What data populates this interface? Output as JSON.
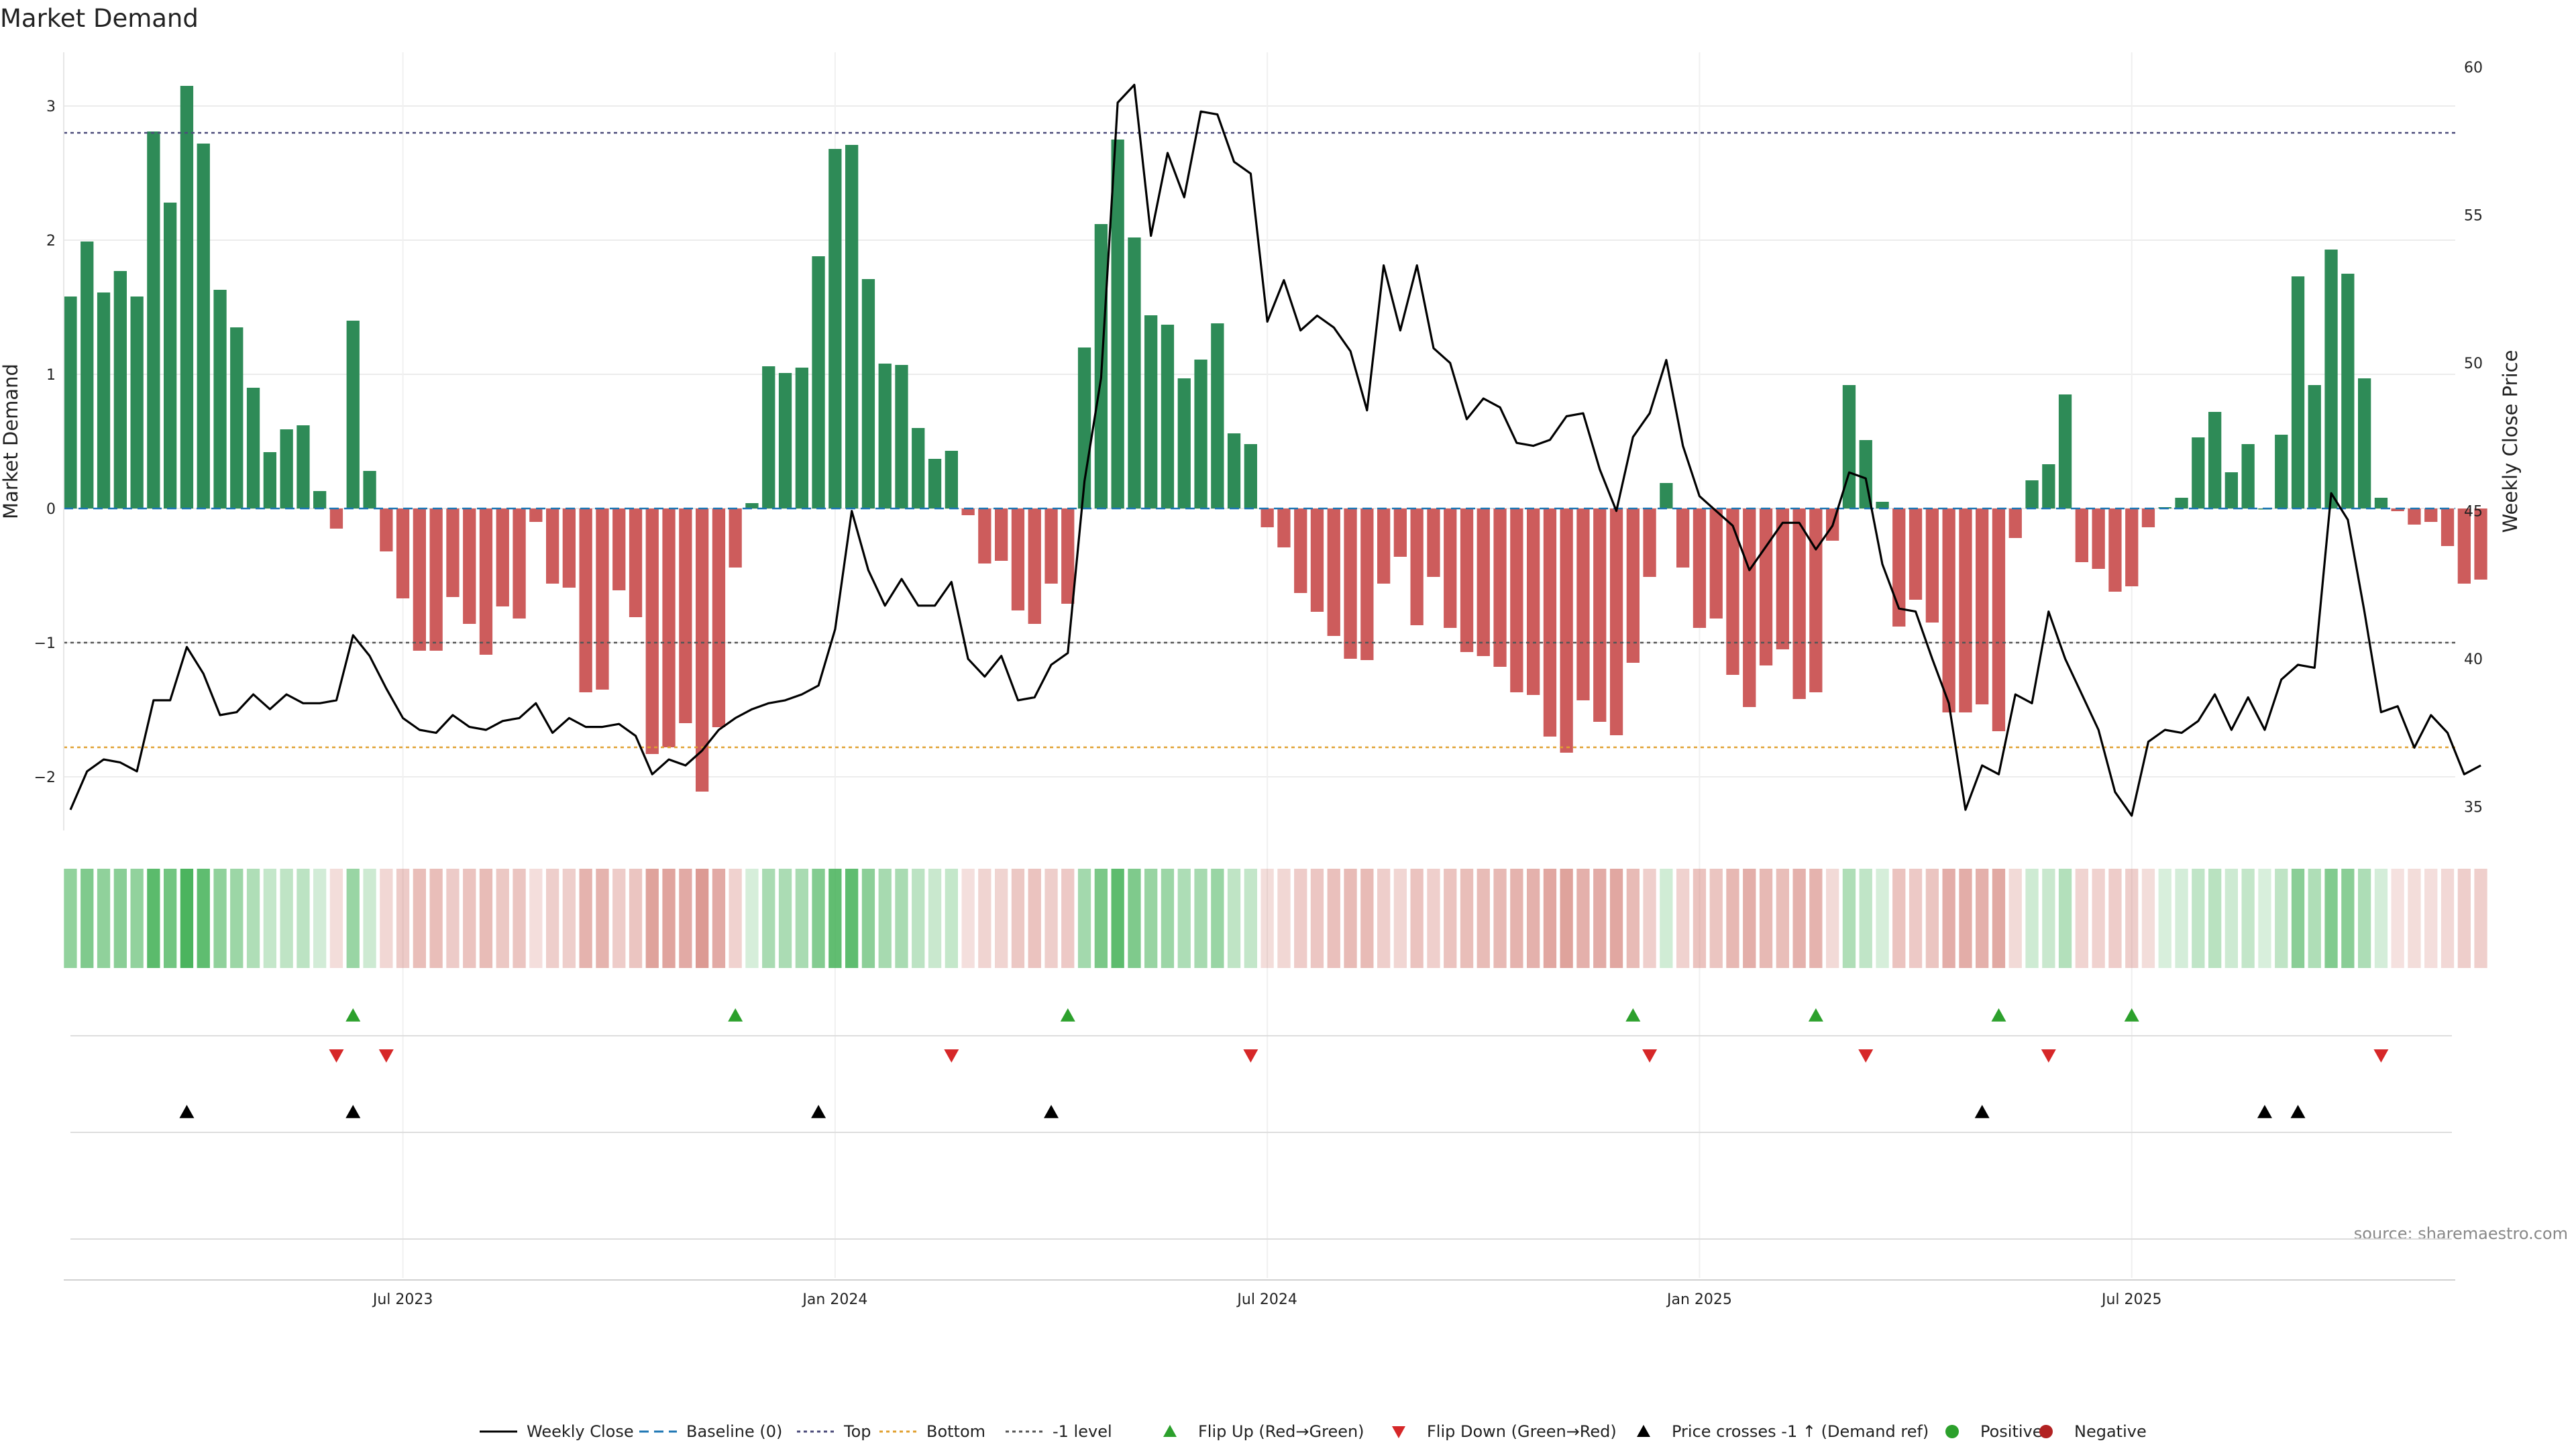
{
  "chart_data": {
    "type": "bar",
    "title": "Market Demand",
    "ylabel_left": "Market Demand",
    "ylabel_right": "Weekly Close Price",
    "source": "source: sharemaestro.com",
    "ylim_left": [
      -2.4,
      3.4
    ],
    "ylim_right": [
      34.2,
      60.5
    ],
    "yticks_left": [
      {
        "value": 3,
        "label": "3"
      },
      {
        "value": 2,
        "label": "2"
      },
      {
        "value": 1,
        "label": "1"
      },
      {
        "value": 0,
        "label": "0"
      },
      {
        "value": -1,
        "label": "−1"
      },
      {
        "value": -2,
        "label": "−2"
      }
    ],
    "yticks_right": [
      {
        "value": 60,
        "label": "60"
      },
      {
        "value": 55,
        "label": "55"
      },
      {
        "value": 50,
        "label": "50"
      },
      {
        "value": 45,
        "label": "45"
      },
      {
        "value": 40,
        "label": "40"
      },
      {
        "value": 35,
        "label": "35"
      }
    ],
    "xticks": [
      {
        "index": 20,
        "label": "Jul 2023"
      },
      {
        "index": 46,
        "label": "Jan 2024"
      },
      {
        "index": 72,
        "label": "Jul 2024"
      },
      {
        "index": 98,
        "label": "Jan 2025"
      },
      {
        "index": 124,
        "label": "Jul 2025"
      }
    ],
    "reference_lines": {
      "top": 2.8,
      "bottom": -1.78,
      "minus_one": -1.0,
      "baseline": 0
    },
    "demand": [
      1.58,
      1.99,
      1.61,
      1.77,
      1.58,
      2.81,
      2.28,
      3.15,
      2.72,
      1.63,
      1.35,
      0.9,
      0.42,
      0.59,
      0.62,
      0.13,
      -0.15,
      1.4,
      0.28,
      -0.32,
      -0.67,
      -1.06,
      -1.06,
      -0.66,
      -0.86,
      -1.09,
      -0.73,
      -0.82,
      -0.1,
      -0.56,
      -0.59,
      -1.37,
      -1.35,
      -0.61,
      -0.81,
      -1.83,
      -1.78,
      -1.6,
      -2.11,
      -1.63,
      -0.44,
      0.04,
      1.06,
      1.01,
      1.05,
      1.88,
      2.68,
      2.71,
      1.71,
      1.08,
      1.07,
      0.6,
      0.37,
      0.43,
      -0.05,
      -0.41,
      -0.39,
      -0.76,
      -0.86,
      -0.56,
      -0.71,
      1.2,
      2.12,
      2.75,
      2.02,
      1.44,
      1.37,
      0.97,
      1.11,
      1.38,
      0.56,
      0.48,
      -0.14,
      -0.29,
      -0.63,
      -0.77,
      -0.95,
      -1.12,
      -1.13,
      -0.56,
      -0.36,
      -0.87,
      -0.51,
      -0.89,
      -1.07,
      -1.1,
      -1.18,
      -1.37,
      -1.39,
      -1.7,
      -1.82,
      -1.43,
      -1.59,
      -1.69,
      -1.15,
      -0.51,
      0.19,
      -0.44,
      -0.89,
      -0.82,
      -1.24,
      -1.48,
      -1.17,
      -1.05,
      -1.42,
      -1.37,
      -0.24,
      0.92,
      0.51,
      0.05,
      -0.88,
      -0.68,
      -0.85,
      -1.52,
      -1.52,
      -1.46,
      -1.66,
      -0.22,
      0.21,
      0.33,
      0.85,
      -0.4,
      -0.45,
      -0.62,
      -0.58,
      -0.14,
      0.01,
      0.08,
      0.53,
      0.72,
      0.27,
      0.48,
      0.0,
      0.55,
      1.73,
      0.92,
      1.93,
      1.75,
      0.97,
      0.08,
      -0.02,
      -0.12,
      -0.1,
      -0.28,
      -0.56,
      -0.53
    ],
    "weekly_close": [
      34.9,
      36.2,
      36.6,
      36.5,
      36.2,
      38.6,
      38.6,
      40.4,
      39.5,
      38.1,
      38.2,
      38.8,
      38.3,
      38.8,
      38.5,
      38.5,
      38.6,
      40.8,
      40.1,
      39.0,
      38.0,
      37.6,
      37.5,
      38.1,
      37.7,
      37.6,
      37.9,
      38.0,
      38.5,
      37.5,
      38.0,
      37.7,
      37.7,
      37.8,
      37.4,
      36.1,
      36.6,
      36.4,
      36.9,
      37.6,
      38.0,
      38.3,
      38.5,
      38.6,
      38.8,
      39.1,
      41.0,
      45.0,
      43.0,
      41.8,
      42.7,
      41.8,
      41.8,
      42.6,
      40.0,
      39.4,
      40.1,
      38.6,
      38.7,
      39.8,
      40.2,
      46.0,
      49.5,
      58.8,
      59.4,
      54.3,
      57.1,
      55.6,
      58.5,
      58.4,
      56.8,
      56.4,
      51.4,
      52.8,
      51.1,
      51.6,
      51.2,
      50.4,
      48.4,
      53.3,
      51.1,
      53.3,
      50.5,
      50.0,
      48.1,
      48.8,
      48.5,
      47.3,
      47.2,
      47.4,
      48.2,
      48.3,
      46.4,
      45.0,
      47.5,
      48.3,
      50.1,
      47.2,
      45.5,
      45.0,
      44.5,
      43.0,
      43.8,
      44.6,
      44.6,
      43.7,
      44.5,
      46.3,
      46.1,
      43.2,
      41.7,
      41.6,
      40.0,
      38.5,
      34.9,
      36.4,
      36.1,
      38.8,
      38.5,
      41.6,
      40.0,
      38.8,
      37.6,
      35.5,
      34.7,
      37.2,
      37.6,
      37.5,
      37.9,
      38.8,
      37.6,
      38.7,
      37.6,
      39.3,
      39.8,
      39.7,
      45.6,
      44.7,
      41.6,
      38.2,
      38.4,
      37.0,
      38.1,
      37.5,
      36.1,
      36.4
    ],
    "flip_up_indices": [
      17,
      40,
      60,
      94,
      105,
      116,
      124
    ],
    "flip_down_indices": [
      16,
      19,
      53,
      71,
      95,
      108,
      119,
      139
    ],
    "price_cross_indices": [
      7,
      17,
      45,
      59,
      115,
      132,
      134
    ],
    "legend": [
      {
        "key": "weekly_close",
        "label": "Weekly Close",
        "color": "#000000"
      },
      {
        "key": "baseline",
        "label": "Baseline (0)",
        "color": "#1f77b4"
      },
      {
        "key": "top",
        "label": "Top",
        "color": "#4b4b7a"
      },
      {
        "key": "bottom",
        "label": "Bottom",
        "color": "#e0a030"
      },
      {
        "key": "minus_one",
        "label": "-1 level",
        "color": "#555555"
      },
      {
        "key": "flip_up",
        "label": "Flip Up (Red→Green)",
        "color": "#2ca02c"
      },
      {
        "key": "flip_down",
        "label": "Flip Down (Green→Red)",
        "color": "#d62728"
      },
      {
        "key": "price_cross",
        "label": "Price crosses -1 ↑ (Demand ref)",
        "color": "#000000"
      },
      {
        "key": "positive",
        "label": "Positive",
        "color": "#2ca02c"
      },
      {
        "key": "negative",
        "label": "Negative",
        "color": "#b22222"
      }
    ],
    "colors": {
      "bar_positive": "#2e8b57",
      "bar_negative": "#cd5c5c",
      "heat_positive": "#3cae50",
      "heat_negative": "#cc6a60"
    }
  }
}
